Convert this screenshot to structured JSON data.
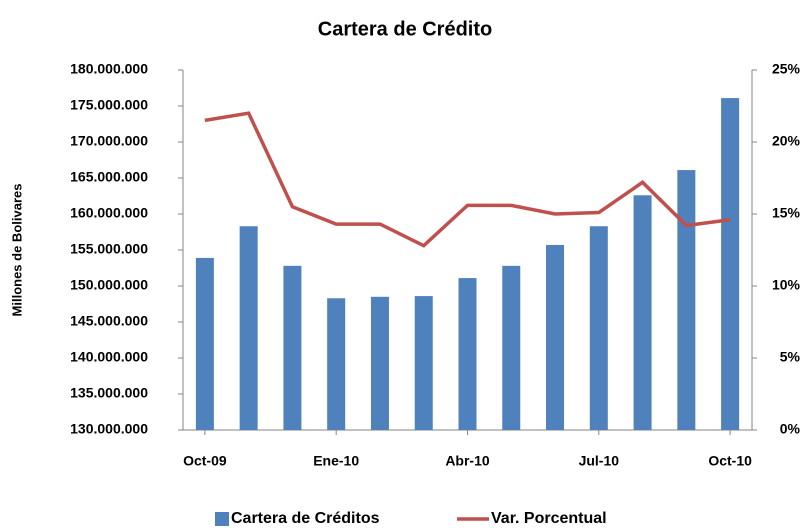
{
  "chart_data": {
    "type": "bar-line",
    "title": "Cartera de Crédito",
    "ylabel": "Millones de Bolivares",
    "categories": [
      "Oct-09",
      null,
      null,
      "Ene-10",
      null,
      null,
      "Abr-10",
      null,
      null,
      "Jul-10",
      null,
      null,
      "Oct-10"
    ],
    "series": [
      {
        "name": "Cartera de Créditos",
        "type": "bar",
        "color": "#4f81bd",
        "values": [
          153900000,
          158300000,
          152800000,
          148300000,
          148500000,
          148600000,
          151100000,
          152800000,
          155700000,
          158300000,
          162600000,
          166100000,
          176100000
        ]
      },
      {
        "name": "Var. Porcentual",
        "type": "line",
        "axis": "y2",
        "color": "#c0504d",
        "values": [
          21.5,
          22.0,
          15.5,
          14.3,
          14.3,
          12.8,
          15.6,
          15.6,
          15.0,
          15.1,
          17.2,
          14.2,
          14.6
        ]
      }
    ],
    "ylim": [
      130000000,
      180000000
    ],
    "yticks": [
      {
        "value": 130000000,
        "label": "130.000.000"
      },
      {
        "value": 135000000,
        "label": "135.000.000"
      },
      {
        "value": 140000000,
        "label": "140.000.000"
      },
      {
        "value": 145000000,
        "label": "145.000.000"
      },
      {
        "value": 150000000,
        "label": "150.000.000"
      },
      {
        "value": 155000000,
        "label": "155.000.000"
      },
      {
        "value": 160000000,
        "label": "160.000.000"
      },
      {
        "value": 165000000,
        "label": "165.000.000"
      },
      {
        "value": 170000000,
        "label": "170.000.000"
      },
      {
        "value": 175000000,
        "label": "175.000.000"
      },
      {
        "value": 180000000,
        "label": "180.000.000"
      }
    ],
    "y2lim": [
      0,
      25
    ],
    "y2ticks": [
      {
        "value": 0,
        "label": "0%"
      },
      {
        "value": 5,
        "label": "5%"
      },
      {
        "value": 10,
        "label": "10%"
      },
      {
        "value": 15,
        "label": "15%"
      },
      {
        "value": 20,
        "label": "20%"
      },
      {
        "value": 25,
        "label": "25%"
      }
    ],
    "legend": "bottom"
  }
}
